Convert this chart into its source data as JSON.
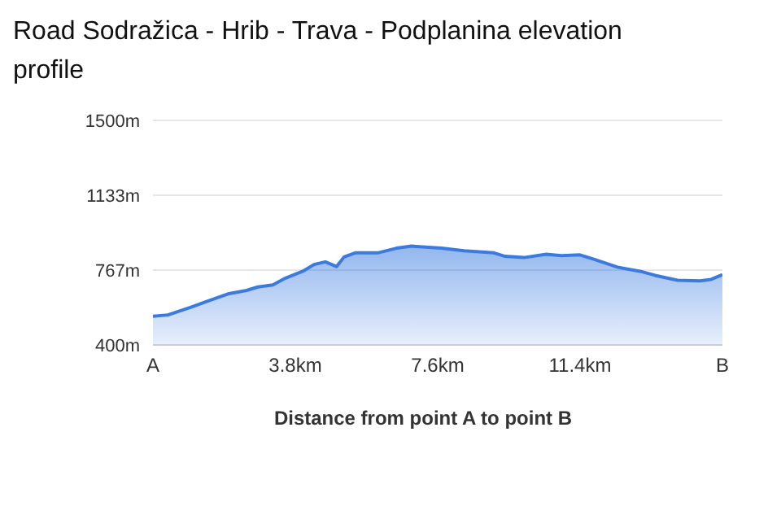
{
  "chart_data": {
    "type": "area",
    "title": "Road Sodražica - Hrib - Trava - Podplanina elevation profile",
    "xlabel": "Distance from point A to point B",
    "x": [
      0,
      0.4,
      1.0,
      1.6,
      2.0,
      2.5,
      2.8,
      3.2,
      3.5,
      4.0,
      4.3,
      4.6,
      4.9,
      5.1,
      5.4,
      6.0,
      6.5,
      6.9,
      7.7,
      8.3,
      9.1,
      9.4,
      9.9,
      10.5,
      10.9,
      11.4,
      11.8,
      12.4,
      13.0,
      13.4,
      14.0,
      14.6,
      14.9,
      15.2
    ],
    "series": [
      {
        "color": "#3b7be0",
        "values": [
          540,
          547,
          584,
          624,
          650,
          667,
          684,
          694,
          724,
          761,
          794,
          807,
          784,
          831,
          851,
          851,
          874,
          884,
          874,
          861,
          851,
          834,
          828,
          844,
          837,
          841,
          818,
          781,
          761,
          741,
          717,
          714,
          721,
          744
        ]
      }
    ],
    "xlim": [
      0,
      15.2
    ],
    "xticks": [
      {
        "value": 0,
        "label": "A"
      },
      {
        "value": 3.8,
        "label": "3.8km"
      },
      {
        "value": 7.6,
        "label": "7.6km"
      },
      {
        "value": 11.4,
        "label": "11.4km"
      },
      {
        "value": 15.2,
        "label": "B"
      }
    ],
    "ylim": [
      400,
      1500
    ],
    "yticks": [
      {
        "value": 400,
        "label": "400m"
      },
      {
        "value": 767,
        "label": "767m"
      },
      {
        "value": 1133,
        "label": "1133m"
      },
      {
        "value": 1500,
        "label": "1500m"
      }
    ],
    "grid": "y",
    "legend": false
  }
}
